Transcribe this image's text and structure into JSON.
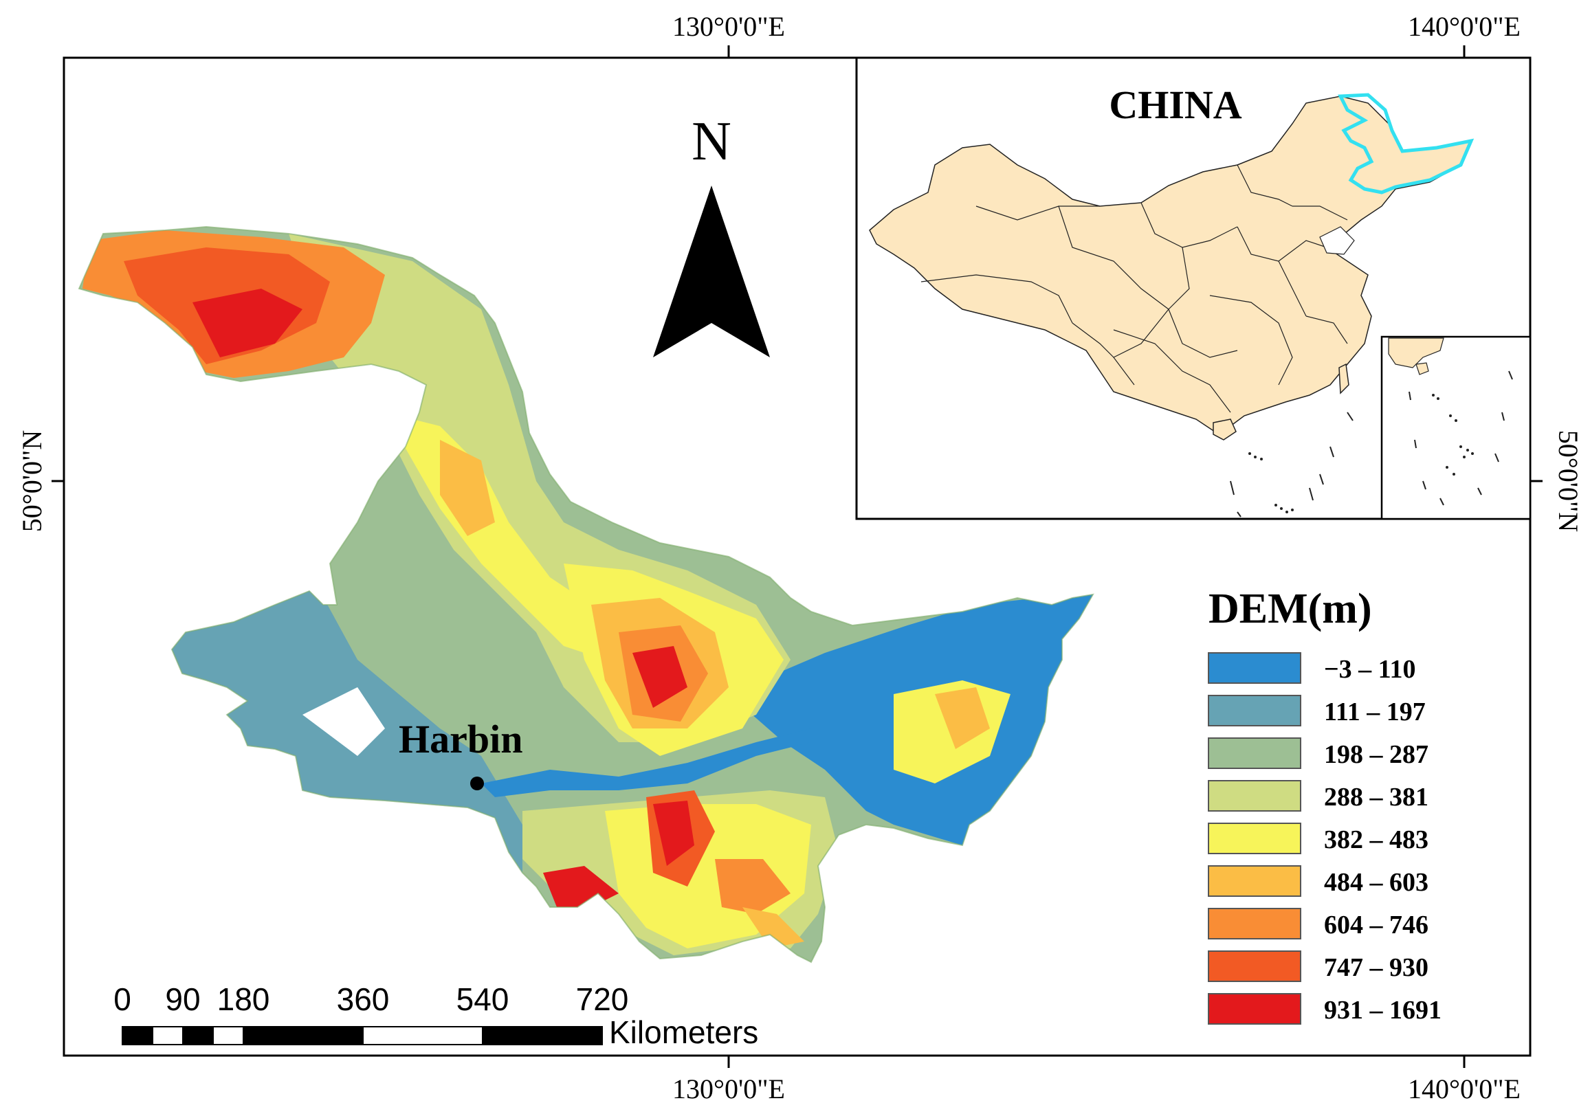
{
  "graticule": {
    "lon_left": "130°0'0\"E",
    "lon_right": "140°0'0\"E",
    "lat": "50°0'0\"N"
  },
  "north_arrow": {
    "letter": "N"
  },
  "inset": {
    "country_label": "CHINA",
    "highlight_color": "#33e0f0",
    "fill_color": "#fde7bf"
  },
  "city": {
    "name": "Harbin"
  },
  "legend": {
    "title": "DEM(m)",
    "classes": [
      {
        "label": "−3 – 110",
        "color": "#2b8cd0"
      },
      {
        "label": "111 – 197",
        "color": "#66a3b4"
      },
      {
        "label": "198 – 287",
        "color": "#9dbf94"
      },
      {
        "label": "288 – 381",
        "color": "#cfdc82"
      },
      {
        "label": "382 – 483",
        "color": "#f7f45a"
      },
      {
        "label": "484 – 603",
        "color": "#fbbd45"
      },
      {
        "label": "604 – 746",
        "color": "#f98d35"
      },
      {
        "label": "747 – 930",
        "color": "#f25a24"
      },
      {
        "label": "931 – 1691",
        "color": "#e3191c"
      }
    ]
  },
  "scale_bar": {
    "ticks": [
      "0",
      "90",
      "180",
      "360",
      "540",
      "720"
    ],
    "unit": "Kilometers"
  }
}
